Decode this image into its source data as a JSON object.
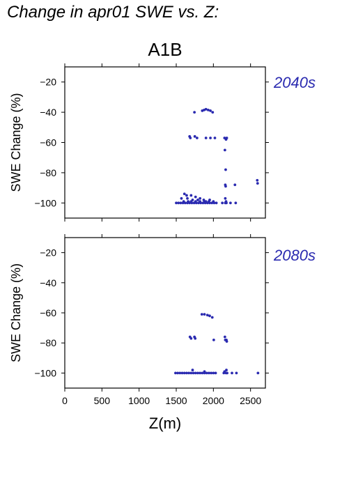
{
  "title": "Change in apr01 SWE vs. Z:",
  "scenario": "A1B",
  "point_color": "#2a2ab0",
  "chart_data": [
    {
      "type": "scatter",
      "period": "2040s",
      "xlabel": "Z(m)",
      "ylabel": "SWE Change (%)",
      "xlim": [
        0,
        2700
      ],
      "ylim": [
        -110,
        -10
      ],
      "yticks": [
        -20,
        -40,
        -60,
        -80,
        -100
      ],
      "xticks": [
        0,
        500,
        1000,
        1500,
        2000,
        2500
      ],
      "x_tick_labels_shown": false,
      "points": [
        [
          1745,
          -40
        ],
        [
          1850,
          -39
        ],
        [
          1875,
          -38.5
        ],
        [
          1900,
          -38
        ],
        [
          1930,
          -38.5
        ],
        [
          1960,
          -39
        ],
        [
          1990,
          -40
        ],
        [
          1680,
          -56
        ],
        [
          1690,
          -57
        ],
        [
          1750,
          -56
        ],
        [
          1780,
          -57
        ],
        [
          1900,
          -57
        ],
        [
          1960,
          -57
        ],
        [
          2020,
          -57
        ],
        [
          2150,
          -57
        ],
        [
          2170,
          -58
        ],
        [
          2180,
          -57
        ],
        [
          2155,
          -65
        ],
        [
          2165,
          -78
        ],
        [
          2160,
          -88
        ],
        [
          2165,
          -89
        ],
        [
          2290,
          -88
        ],
        [
          2590,
          -85
        ],
        [
          2595,
          -87
        ],
        [
          2160,
          -97
        ],
        [
          2170,
          -99
        ],
        [
          1610,
          -94
        ],
        [
          1640,
          -95
        ],
        [
          1700,
          -95
        ],
        [
          1760,
          -96
        ],
        [
          1820,
          -97
        ],
        [
          1870,
          -98
        ],
        [
          1950,
          -98
        ],
        [
          1570,
          -97
        ],
        [
          1650,
          -97
        ],
        [
          1720,
          -98
        ],
        [
          1790,
          -98
        ],
        [
          1900,
          -99
        ],
        [
          1500,
          -100
        ],
        [
          1530,
          -100
        ],
        [
          1560,
          -100
        ],
        [
          1590,
          -100
        ],
        [
          1620,
          -100
        ],
        [
          1650,
          -100
        ],
        [
          1680,
          -100
        ],
        [
          1710,
          -100
        ],
        [
          1740,
          -100
        ],
        [
          1770,
          -100
        ],
        [
          1800,
          -100
        ],
        [
          1830,
          -100
        ],
        [
          1860,
          -100
        ],
        [
          1890,
          -100
        ],
        [
          1920,
          -100
        ],
        [
          1950,
          -100
        ],
        [
          1980,
          -100
        ],
        [
          2010,
          -100
        ],
        [
          2040,
          -100
        ],
        [
          1600,
          -99
        ],
        [
          1660,
          -99
        ],
        [
          1700,
          -99
        ],
        [
          1760,
          -99
        ],
        [
          1820,
          -99
        ],
        [
          1880,
          -99
        ],
        [
          1940,
          -99
        ],
        [
          2000,
          -99
        ],
        [
          2120,
          -100
        ],
        [
          2160,
          -100
        ],
        [
          2175,
          -100
        ],
        [
          2230,
          -100
        ],
        [
          2300,
          -100
        ]
      ]
    },
    {
      "type": "scatter",
      "period": "2080s",
      "xlabel": "Z(m)",
      "ylabel": "SWE Change (%)",
      "xlim": [
        0,
        2700
      ],
      "ylim": [
        -110,
        -10
      ],
      "yticks": [
        -20,
        -40,
        -60,
        -80,
        -100
      ],
      "xticks": [
        0,
        500,
        1000,
        1500,
        2000,
        2500
      ],
      "x_tick_labels_shown": true,
      "points": [
        [
          1845,
          -61
        ],
        [
          1880,
          -61
        ],
        [
          1920,
          -61.5
        ],
        [
          1950,
          -62
        ],
        [
          1985,
          -63
        ],
        [
          1685,
          -76
        ],
        [
          1700,
          -77
        ],
        [
          1745,
          -76
        ],
        [
          1755,
          -77
        ],
        [
          2005,
          -78
        ],
        [
          2155,
          -76
        ],
        [
          2160,
          -78
        ],
        [
          2175,
          -78
        ],
        [
          2180,
          -79
        ],
        [
          1720,
          -98
        ],
        [
          1880,
          -99
        ],
        [
          2175,
          -98
        ],
        [
          2150,
          -99
        ],
        [
          1490,
          -100
        ],
        [
          1520,
          -100
        ],
        [
          1550,
          -100
        ],
        [
          1580,
          -100
        ],
        [
          1610,
          -100
        ],
        [
          1640,
          -100
        ],
        [
          1670,
          -100
        ],
        [
          1700,
          -100
        ],
        [
          1730,
          -100
        ],
        [
          1760,
          -100
        ],
        [
          1790,
          -100
        ],
        [
          1820,
          -100
        ],
        [
          1850,
          -100
        ],
        [
          1880,
          -100
        ],
        [
          1910,
          -100
        ],
        [
          1940,
          -100
        ],
        [
          1970,
          -100
        ],
        [
          2000,
          -100
        ],
        [
          2030,
          -100
        ],
        [
          2140,
          -100
        ],
        [
          2170,
          -100
        ],
        [
          2185,
          -100
        ],
        [
          2250,
          -100
        ],
        [
          2310,
          -100
        ],
        [
          2600,
          -100
        ]
      ]
    }
  ]
}
